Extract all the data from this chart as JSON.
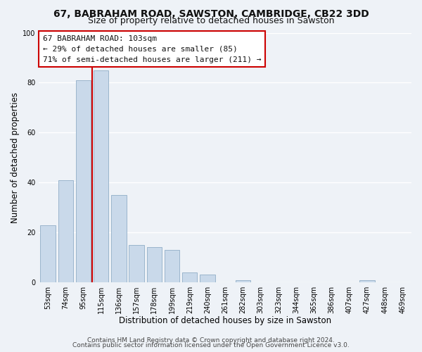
{
  "title": "67, BABRAHAM ROAD, SAWSTON, CAMBRIDGE, CB22 3DD",
  "subtitle": "Size of property relative to detached houses in Sawston",
  "xlabel": "Distribution of detached houses by size in Sawston",
  "ylabel": "Number of detached properties",
  "bar_labels": [
    "53sqm",
    "74sqm",
    "95sqm",
    "115sqm",
    "136sqm",
    "157sqm",
    "178sqm",
    "199sqm",
    "219sqm",
    "240sqm",
    "261sqm",
    "282sqm",
    "303sqm",
    "323sqm",
    "344sqm",
    "365sqm",
    "386sqm",
    "407sqm",
    "427sqm",
    "448sqm",
    "469sqm"
  ],
  "bar_values": [
    23,
    41,
    81,
    85,
    35,
    15,
    14,
    13,
    4,
    3,
    0,
    1,
    0,
    0,
    0,
    0,
    0,
    0,
    1,
    0,
    0
  ],
  "bar_color": "#c9d9ea",
  "bar_edge_color": "#9ab5cc",
  "highlight_edge_color": "#cc0000",
  "annotation_line1": "67 BABRAHAM ROAD: 103sqm",
  "annotation_line2": "← 29% of detached houses are smaller (85)",
  "annotation_line3": "71% of semi-detached houses are larger (211) →",
  "ylim": [
    0,
    100
  ],
  "footer_line1": "Contains HM Land Registry data © Crown copyright and database right 2024.",
  "footer_line2": "Contains public sector information licensed under the Open Government Licence v3.0.",
  "bg_color": "#eef2f7",
  "plot_bg_color": "#eef2f7",
  "grid_color": "#ffffff",
  "title_fontsize": 10,
  "subtitle_fontsize": 9,
  "axis_label_fontsize": 8.5,
  "tick_fontsize": 7,
  "annotation_fontsize": 8,
  "footer_fontsize": 6.5,
  "red_line_bar_idx": 2.5
}
